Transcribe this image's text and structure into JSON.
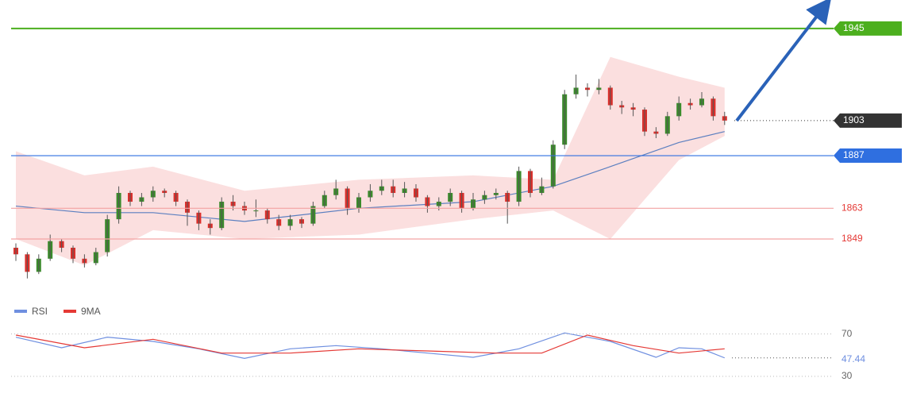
{
  "chart_data": [
    {
      "type": "candlestick",
      "ylim": [
        1824,
        1958
      ],
      "open": [
        1845,
        1842,
        1834,
        1840,
        1848,
        1845,
        1840,
        1838,
        1843,
        1858,
        1870,
        1866,
        1868,
        1871,
        1870,
        1866,
        1861,
        1856,
        1854,
        1866,
        1864,
        1862,
        1862,
        1858,
        1855,
        1858,
        1856,
        1864,
        1869,
        1872,
        1863,
        1868,
        1871,
        1873,
        1870,
        1872,
        1868,
        1864,
        1866,
        1870,
        1863,
        1867,
        1869,
        1870,
        1866,
        1880,
        1870,
        1873,
        1892,
        1915,
        1918,
        1917,
        1918,
        1910,
        1909,
        1908,
        1898,
        1897,
        1905,
        1911,
        1910,
        1913,
        1905
      ],
      "high": [
        1847,
        1843,
        1842,
        1851,
        1849,
        1846,
        1842,
        1845,
        1860,
        1873,
        1871,
        1870,
        1873,
        1872,
        1871,
        1867,
        1862,
        1858,
        1868,
        1869,
        1866,
        1867,
        1863,
        1860,
        1860,
        1859,
        1866,
        1871,
        1876,
        1873,
        1870,
        1874,
        1876,
        1876,
        1875,
        1874,
        1869,
        1868,
        1872,
        1871,
        1870,
        1871,
        1872,
        1871,
        1882,
        1881,
        1877,
        1894,
        1917,
        1924,
        1920,
        1922,
        1919,
        1912,
        1911,
        1909,
        1900,
        1907,
        1914,
        1913,
        1916,
        1914,
        1907
      ],
      "low": [
        1839,
        1831,
        1833,
        1839,
        1843,
        1838,
        1836,
        1837,
        1841,
        1856,
        1864,
        1864,
        1866,
        1868,
        1864,
        1855,
        1853,
        1851,
        1853,
        1862,
        1860,
        1859,
        1856,
        1853,
        1853,
        1854,
        1855,
        1863,
        1867,
        1860,
        1861,
        1866,
        1869,
        1868,
        1868,
        1866,
        1861,
        1862,
        1864,
        1861,
        1862,
        1865,
        1867,
        1856,
        1864,
        1868,
        1869,
        1872,
        1890,
        1913,
        1914,
        1915,
        1908,
        1906,
        1905,
        1896,
        1895,
        1896,
        1903,
        1908,
        1909,
        1903,
        1901
      ],
      "close": [
        1842,
        1834,
        1840,
        1848,
        1845,
        1840,
        1838,
        1843,
        1858,
        1870,
        1866,
        1868,
        1871,
        1870,
        1866,
        1861,
        1856,
        1854,
        1866,
        1864,
        1862,
        1862,
        1858,
        1855,
        1858,
        1856,
        1864,
        1869,
        1872,
        1863,
        1868,
        1871,
        1873,
        1870,
        1872,
        1868,
        1864,
        1866,
        1870,
        1863,
        1867,
        1869,
        1870,
        1866,
        1880,
        1870,
        1873,
        1892,
        1915,
        1918,
        1917,
        1918,
        1910,
        1909,
        1908,
        1898,
        1897,
        1905,
        1911,
        1910,
        1913,
        1905,
        1903
      ],
      "up_color": "#3b8a2c",
      "down_color": "#d9302c",
      "band": {
        "x": [
          0,
          6,
          12,
          20,
          30,
          40,
          47,
          52,
          58,
          62
        ],
        "upper": [
          1889,
          1878,
          1882,
          1871,
          1876,
          1878,
          1876,
          1932,
          1923,
          1918
        ],
        "lower": [
          1849,
          1837,
          1853,
          1849,
          1851,
          1858,
          1862,
          1849,
          1885,
          1896
        ],
        "middle": [
          1864,
          1861,
          1861,
          1857,
          1863,
          1866,
          1873,
          1882,
          1893,
          1898
        ],
        "color": "#f8c9c9",
        "middle_color": "#5b7fc0"
      },
      "levels": [
        {
          "value": 1945,
          "color": "#4caf1e",
          "style": "box"
        },
        {
          "value": 1903,
          "color": "#333333",
          "style": "current"
        },
        {
          "value": 1887,
          "color": "#2f6fe0",
          "style": "box"
        },
        {
          "value": 1863,
          "color": "#e53935",
          "style": "text"
        },
        {
          "value": 1849,
          "color": "#e53935",
          "style": "text"
        }
      ]
    },
    {
      "type": "line",
      "ylim": [
        18,
        78
      ],
      "yticks": [
        30,
        70
      ],
      "current": {
        "value": 47.44,
        "label": "47.44"
      },
      "series": [
        {
          "name": "RSI",
          "color": "#6f8fe0",
          "x": [
            0,
            4,
            8,
            12,
            16,
            20,
            24,
            28,
            32,
            36,
            40,
            44,
            48,
            52,
            56,
            58,
            60,
            62
          ],
          "values": [
            67,
            57,
            67,
            63,
            56,
            47,
            56,
            59,
            56,
            52,
            48,
            56,
            71,
            63,
            48,
            57,
            56,
            47.44
          ]
        },
        {
          "name": "9MA",
          "color": "#e53935",
          "x": [
            0,
            6,
            12,
            18,
            24,
            30,
            36,
            42,
            46,
            50,
            54,
            58,
            62
          ],
          "values": [
            69,
            57,
            65,
            52,
            52,
            56,
            54,
            52,
            52,
            69,
            59,
            52,
            56
          ]
        }
      ]
    }
  ]
}
